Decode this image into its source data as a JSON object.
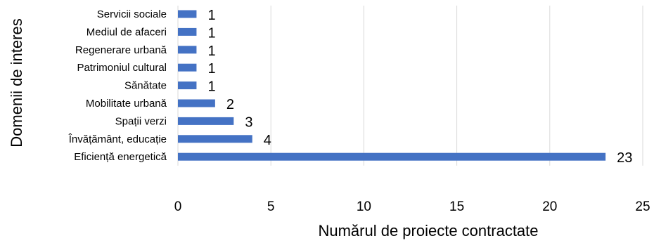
{
  "chart_data": {
    "type": "bar",
    "orientation": "horizontal",
    "categories": [
      "Servicii sociale",
      "Mediul de afaceri",
      "Regenerare urbană",
      "Patrimoniul cultural",
      "Sănătate",
      "Mobilitate urbană",
      "Spații verzi",
      "Învățământ, educație",
      "Eficiență energetică"
    ],
    "values": [
      1,
      1,
      1,
      1,
      1,
      2,
      3,
      4,
      23
    ],
    "title": "",
    "xlabel": "Numărul de proiecte contractate",
    "ylabel": "Domenii de interes",
    "xlim": [
      0,
      25
    ],
    "xticks": [
      0,
      5,
      10,
      15,
      20,
      25
    ],
    "grid": true,
    "legend": "none",
    "data_labels": true
  },
  "colors": {
    "bar": "#4472C4",
    "grid": "#D9D9D9",
    "text": "#000000"
  }
}
